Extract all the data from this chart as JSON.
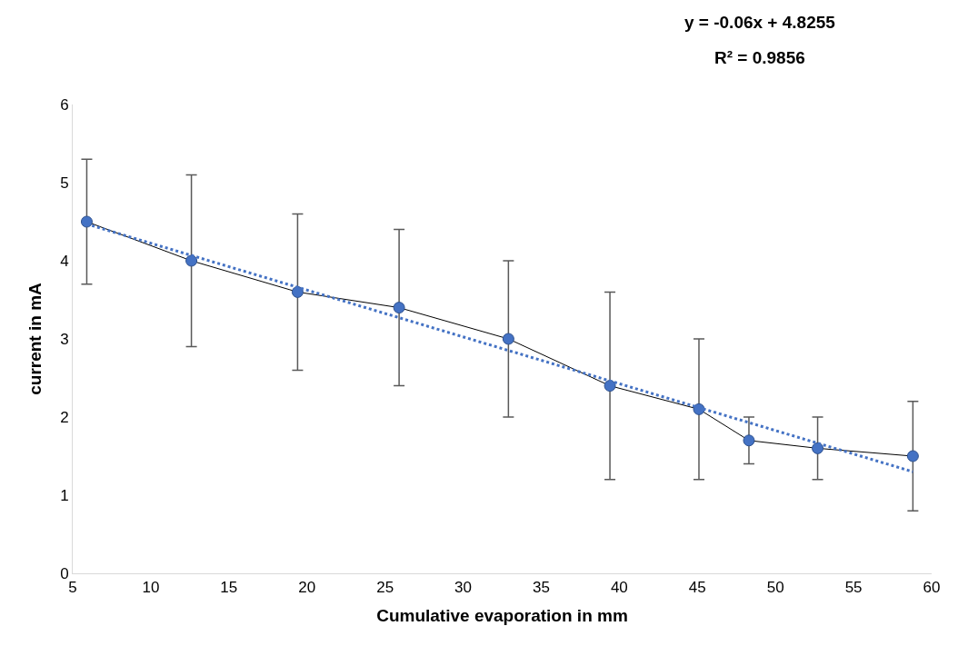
{
  "chart_data": {
    "type": "line",
    "xlabel": "Cumulative evaporation in mm",
    "ylabel": "current in mA",
    "xlim": [
      5,
      60
    ],
    "xticks": [
      5,
      10,
      15,
      20,
      25,
      30,
      35,
      40,
      45,
      50,
      55,
      60
    ],
    "ylim": [
      0,
      6
    ],
    "yticks": [
      0,
      1,
      2,
      3,
      4,
      5,
      6
    ],
    "marker": "circle",
    "annotations": [
      "y = -0.06x + 4.8255",
      "R² = 0.9856"
    ],
    "series": [
      {
        "color": "#000000",
        "line_style": "solid",
        "x": [
          5.9,
          12.6,
          19.4,
          25.9,
          32.9,
          39.4,
          45.1,
          48.3,
          52.7,
          58.8
        ],
        "values": [
          4.5,
          4.0,
          3.6,
          3.4,
          3.0,
          2.4,
          2.1,
          1.7,
          1.6,
          1.5
        ],
        "errors": [
          [
            3.7,
            5.3
          ],
          [
            2.9,
            5.1
          ],
          [
            2.6,
            4.6
          ],
          [
            2.4,
            4.4
          ],
          [
            2.0,
            4.0
          ],
          [
            1.2,
            3.6
          ],
          [
            1.2,
            3.0
          ],
          [
            1.4,
            2.0
          ],
          [
            1.2,
            2.0
          ],
          [
            0.8,
            2.2
          ]
        ]
      },
      {
        "color": "#4472c4",
        "marker": "none",
        "line_style": "dotted",
        "x": [
          5.9,
          58.8
        ],
        "values": [
          4.47,
          1.3
        ]
      }
    ]
  }
}
